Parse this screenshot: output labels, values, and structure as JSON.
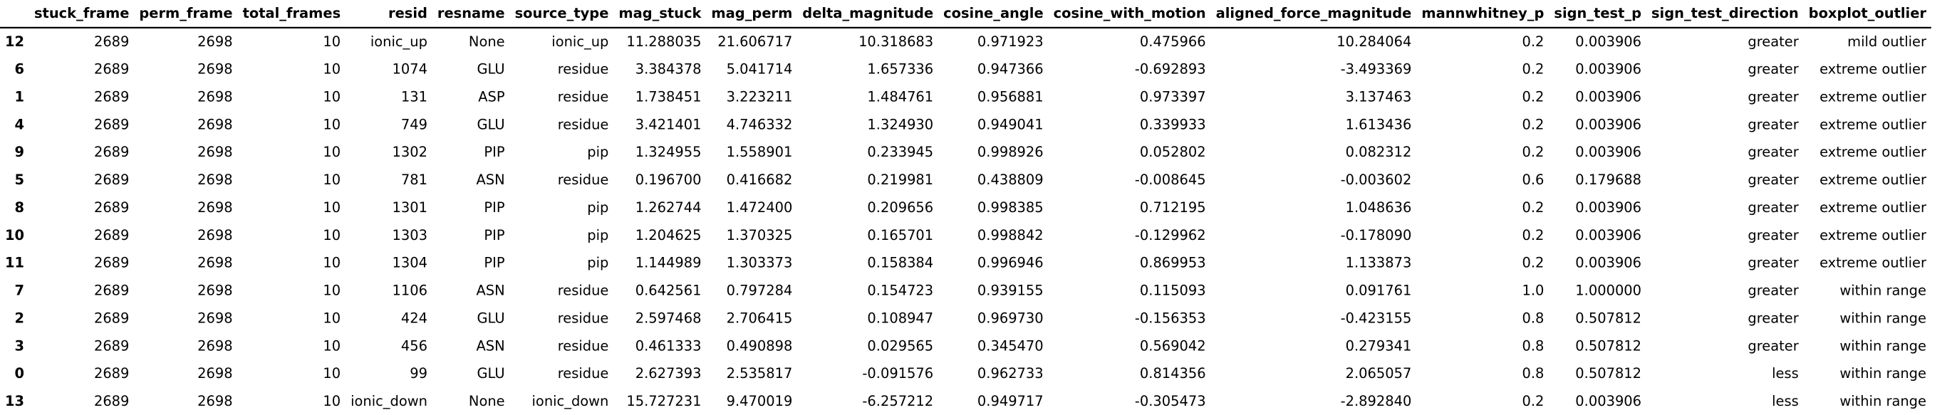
{
  "columns": [
    "",
    "stuck_frame",
    "perm_frame",
    "total_frames",
    "resid",
    "resname",
    "source_type",
    "mag_stuck",
    "mag_perm",
    "delta_magnitude",
    "cosine_angle",
    "cosine_with_motion",
    "aligned_force_magnitude",
    "mannwhitney_p",
    "sign_test_p",
    "sign_test_direction",
    "boxplot_outlier"
  ],
  "rows": [
    [
      "12",
      "2689",
      "2698",
      "10",
      "ionic_up",
      "None",
      "ionic_up",
      "11.288035",
      "21.606717",
      "10.318683",
      "0.971923",
      "0.475966",
      "10.284064",
      "0.2",
      "0.003906",
      "greater",
      "mild outlier"
    ],
    [
      "6",
      "2689",
      "2698",
      "10",
      "1074",
      "GLU",
      "residue",
      "3.384378",
      "5.041714",
      "1.657336",
      "0.947366",
      "-0.692893",
      "-3.493369",
      "0.2",
      "0.003906",
      "greater",
      "extreme outlier"
    ],
    [
      "1",
      "2689",
      "2698",
      "10",
      "131",
      "ASP",
      "residue",
      "1.738451",
      "3.223211",
      "1.484761",
      "0.956881",
      "0.973397",
      "3.137463",
      "0.2",
      "0.003906",
      "greater",
      "extreme outlier"
    ],
    [
      "4",
      "2689",
      "2698",
      "10",
      "749",
      "GLU",
      "residue",
      "3.421401",
      "4.746332",
      "1.324930",
      "0.949041",
      "0.339933",
      "1.613436",
      "0.2",
      "0.003906",
      "greater",
      "extreme outlier"
    ],
    [
      "9",
      "2689",
      "2698",
      "10",
      "1302",
      "PIP",
      "pip",
      "1.324955",
      "1.558901",
      "0.233945",
      "0.998926",
      "0.052802",
      "0.082312",
      "0.2",
      "0.003906",
      "greater",
      "extreme outlier"
    ],
    [
      "5",
      "2689",
      "2698",
      "10",
      "781",
      "ASN",
      "residue",
      "0.196700",
      "0.416682",
      "0.219981",
      "0.438809",
      "-0.008645",
      "-0.003602",
      "0.6",
      "0.179688",
      "greater",
      "extreme outlier"
    ],
    [
      "8",
      "2689",
      "2698",
      "10",
      "1301",
      "PIP",
      "pip",
      "1.262744",
      "1.472400",
      "0.209656",
      "0.998385",
      "0.712195",
      "1.048636",
      "0.2",
      "0.003906",
      "greater",
      "extreme outlier"
    ],
    [
      "10",
      "2689",
      "2698",
      "10",
      "1303",
      "PIP",
      "pip",
      "1.204625",
      "1.370325",
      "0.165701",
      "0.998842",
      "-0.129962",
      "-0.178090",
      "0.2",
      "0.003906",
      "greater",
      "extreme outlier"
    ],
    [
      "11",
      "2689",
      "2698",
      "10",
      "1304",
      "PIP",
      "pip",
      "1.144989",
      "1.303373",
      "0.158384",
      "0.996946",
      "0.869953",
      "1.133873",
      "0.2",
      "0.003906",
      "greater",
      "extreme outlier"
    ],
    [
      "7",
      "2689",
      "2698",
      "10",
      "1106",
      "ASN",
      "residue",
      "0.642561",
      "0.797284",
      "0.154723",
      "0.939155",
      "0.115093",
      "0.091761",
      "1.0",
      "1.000000",
      "greater",
      "within range"
    ],
    [
      "2",
      "2689",
      "2698",
      "10",
      "424",
      "GLU",
      "residue",
      "2.597468",
      "2.706415",
      "0.108947",
      "0.969730",
      "-0.156353",
      "-0.423155",
      "0.8",
      "0.507812",
      "greater",
      "within range"
    ],
    [
      "3",
      "2689",
      "2698",
      "10",
      "456",
      "ASN",
      "residue",
      "0.461333",
      "0.490898",
      "0.029565",
      "0.345470",
      "0.569042",
      "0.279341",
      "0.8",
      "0.507812",
      "greater",
      "within range"
    ],
    [
      "0",
      "2689",
      "2698",
      "10",
      "99",
      "GLU",
      "residue",
      "2.627393",
      "2.535817",
      "-0.091576",
      "0.962733",
      "0.814356",
      "2.065057",
      "0.8",
      "0.507812",
      "less",
      "within range"
    ],
    [
      "13",
      "2689",
      "2698",
      "10",
      "ionic_down",
      "None",
      "ionic_down",
      "15.727231",
      "9.470019",
      "-6.257212",
      "0.949717",
      "-0.305473",
      "-2.892840",
      "0.2",
      "0.003906",
      "less",
      "within range"
    ]
  ]
}
